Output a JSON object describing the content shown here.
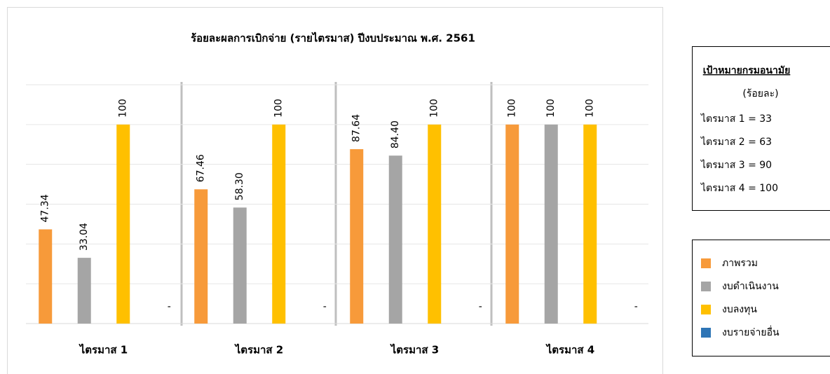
{
  "chart_data": {
    "type": "bar",
    "title": "ร้อยละผลการเบิกจ่าย (รายไตรมาส) ปีงบประมาณ พ.ศ. 2561",
    "categories": [
      "ไตรมาส 1",
      "ไตรมาส 2",
      "ไตรมาส 3",
      "ไตรมาส 4"
    ],
    "series": [
      {
        "name": "ภาพรวม",
        "color": "#f79a3a",
        "values": [
          47.34,
          67.46,
          87.64,
          100
        ],
        "value_labels": [
          "47.34",
          "67.46",
          "87.64",
          "100"
        ]
      },
      {
        "name": "งบดำเนินงาน",
        "color": "#a5a5a5",
        "values": [
          33.04,
          58.3,
          84.4,
          100
        ],
        "value_labels": [
          "33.04",
          "58.30",
          "84.40",
          "100"
        ]
      },
      {
        "name": "งบลงทุน",
        "color": "#ffc000",
        "values": [
          100,
          100,
          100,
          100
        ],
        "value_labels": [
          "100",
          "100",
          "100",
          "100"
        ]
      },
      {
        "name": "งบรายจ่ายอื่น",
        "color": "#2e75b6",
        "values": [
          0,
          0,
          0,
          0
        ],
        "value_labels": [
          "-",
          "-",
          "-",
          "-"
        ]
      }
    ],
    "ylim": [
      0,
      120
    ],
    "ygrid": [
      0,
      20,
      40,
      60,
      80,
      100,
      120
    ],
    "grid": true,
    "legend": "right"
  },
  "targets": {
    "title": "เป้าหมายกรมอนามัย",
    "unit": "(ร้อยละ)",
    "items": [
      "ไตรมาส 1 = 33",
      "ไตรมาส 2 = 63",
      "ไตรมาส 3 = 90",
      "ไตรมาส 4 = 100"
    ]
  }
}
